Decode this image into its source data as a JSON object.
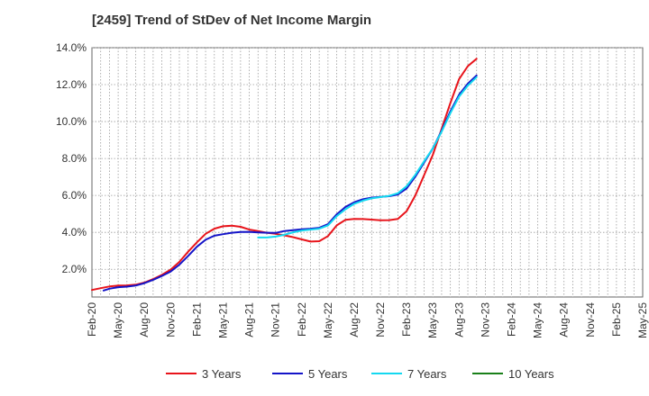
{
  "chart_data": {
    "type": "line",
    "title": "[2459]  Trend of StDev of Net Income Margin",
    "xlabel": "",
    "ylabel": "",
    "x_tick_labels": [
      "Feb-20",
      "May-20",
      "Aug-20",
      "Nov-20",
      "Feb-21",
      "May-21",
      "Aug-21",
      "Nov-21",
      "Feb-22",
      "May-22",
      "Aug-22",
      "Nov-22",
      "Feb-23",
      "May-23",
      "Aug-23",
      "Nov-23",
      "Feb-24",
      "May-24",
      "Aug-24",
      "Nov-24",
      "Feb-25",
      "May-25"
    ],
    "y_tick_labels": [
      "2.0%",
      "4.0%",
      "6.0%",
      "8.0%",
      "10.0%",
      "12.0%",
      "14.0%"
    ],
    "ylim": [
      0.5,
      14.0
    ],
    "grid": true,
    "legend_position": "bottom",
    "series": [
      {
        "name": "3 Years",
        "color": "#e8141b",
        "points": [
          [
            0,
            0.88
          ],
          [
            1,
            0.98
          ],
          [
            2,
            1.07
          ],
          [
            3,
            1.12
          ],
          [
            4,
            1.13
          ],
          [
            5,
            1.17
          ],
          [
            6,
            1.28
          ],
          [
            7,
            1.47
          ],
          [
            8,
            1.7
          ],
          [
            9,
            1.98
          ],
          [
            10,
            2.4
          ],
          [
            11,
            2.95
          ],
          [
            12,
            3.46
          ],
          [
            13,
            3.92
          ],
          [
            14,
            4.2
          ],
          [
            15,
            4.33
          ],
          [
            16,
            4.36
          ],
          [
            17,
            4.3
          ],
          [
            18,
            4.15
          ],
          [
            19,
            4.07
          ],
          [
            20,
            3.98
          ],
          [
            21,
            3.92
          ],
          [
            22,
            3.84
          ],
          [
            23,
            3.74
          ],
          [
            24,
            3.62
          ],
          [
            25,
            3.5
          ],
          [
            26,
            3.52
          ],
          [
            27,
            3.8
          ],
          [
            28,
            4.38
          ],
          [
            29,
            4.68
          ],
          [
            30,
            4.73
          ],
          [
            31,
            4.72
          ],
          [
            32,
            4.69
          ],
          [
            33,
            4.65
          ],
          [
            34,
            4.66
          ],
          [
            35,
            4.73
          ],
          [
            36,
            5.15
          ],
          [
            37,
            6.0
          ],
          [
            38,
            7.1
          ],
          [
            39,
            8.2
          ],
          [
            40,
            9.6
          ],
          [
            41,
            11.0
          ],
          [
            42,
            12.3
          ],
          [
            43,
            13.0
          ],
          [
            44,
            13.4
          ]
        ]
      },
      {
        "name": "5 Years",
        "color": "#1414c8",
        "points": [
          [
            1.33,
            0.85
          ],
          [
            2,
            0.95
          ],
          [
            3,
            1.03
          ],
          [
            4,
            1.06
          ],
          [
            5,
            1.12
          ],
          [
            6,
            1.25
          ],
          [
            7,
            1.43
          ],
          [
            8,
            1.64
          ],
          [
            9,
            1.88
          ],
          [
            10,
            2.25
          ],
          [
            11,
            2.72
          ],
          [
            12,
            3.22
          ],
          [
            13,
            3.6
          ],
          [
            14,
            3.82
          ],
          [
            15,
            3.9
          ],
          [
            16,
            3.98
          ],
          [
            17,
            4.02
          ],
          [
            18,
            4.03
          ],
          [
            19,
            4.0
          ],
          [
            20,
            3.98
          ],
          [
            21,
            3.97
          ],
          [
            22,
            4.07
          ],
          [
            23,
            4.12
          ],
          [
            24,
            4.17
          ],
          [
            25,
            4.2
          ],
          [
            26,
            4.25
          ],
          [
            27,
            4.45
          ],
          [
            28,
            4.98
          ],
          [
            29,
            5.38
          ],
          [
            30,
            5.63
          ],
          [
            31,
            5.8
          ],
          [
            32,
            5.88
          ],
          [
            33,
            5.92
          ],
          [
            34,
            5.96
          ],
          [
            35,
            6.05
          ],
          [
            36,
            6.38
          ],
          [
            37,
            7.02
          ],
          [
            38,
            7.78
          ],
          [
            39,
            8.55
          ],
          [
            40,
            9.5
          ],
          [
            41,
            10.55
          ],
          [
            42,
            11.45
          ],
          [
            43,
            12.05
          ],
          [
            44,
            12.5
          ]
        ]
      },
      {
        "name": "7 Years",
        "color": "#14d8f0",
        "points": [
          [
            19,
            3.72
          ],
          [
            20,
            3.72
          ],
          [
            21,
            3.77
          ],
          [
            22,
            3.87
          ],
          [
            23,
            4.0
          ],
          [
            24,
            4.1
          ],
          [
            25,
            4.15
          ],
          [
            26,
            4.2
          ],
          [
            27,
            4.38
          ],
          [
            28,
            4.88
          ],
          [
            29,
            5.25
          ],
          [
            30,
            5.55
          ],
          [
            31,
            5.72
          ],
          [
            32,
            5.84
          ],
          [
            33,
            5.91
          ],
          [
            34,
            5.98
          ],
          [
            35,
            6.12
          ],
          [
            36,
            6.5
          ],
          [
            37,
            7.12
          ],
          [
            38,
            7.85
          ],
          [
            39,
            8.55
          ],
          [
            40,
            9.45
          ],
          [
            41,
            10.45
          ],
          [
            42,
            11.35
          ],
          [
            43,
            11.95
          ],
          [
            44,
            12.4
          ]
        ]
      },
      {
        "name": "10 Years",
        "color": "#1a801a",
        "points": []
      }
    ]
  }
}
